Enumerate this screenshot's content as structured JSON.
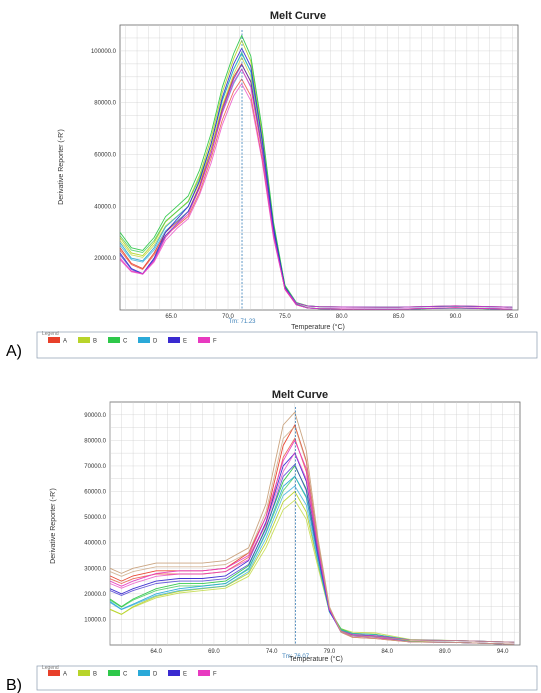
{
  "panels": [
    {
      "panel_label": "A)",
      "legend_title": "Legend",
      "tm_label": "Tm: 71.23",
      "chart_data": {
        "type": "line",
        "title": "Melt Curve",
        "xlabel": "Temperature (°C)",
        "ylabel": "Derivative Reporter (-R')",
        "xlim": [
          60.5,
          95.5
        ],
        "ylim": [
          0,
          110000
        ],
        "x_ticks": [
          65.0,
          70.0,
          75.0,
          80.0,
          85.0,
          90.0,
          95.0
        ],
        "x_tick_labels": [
          "65.0",
          "70.0",
          "75.0",
          "80.0",
          "85.0",
          "90.0",
          "95.0"
        ],
        "y_ticks": [
          20000,
          40000,
          60000,
          80000,
          100000
        ],
        "y_tick_labels": [
          "20000.0",
          "40000.0",
          "60000.0",
          "80000.0",
          "100000.0"
        ],
        "tm_x": 71.23,
        "grid": true,
        "legend_position": "bottom",
        "series": [
          {
            "name": "A",
            "color": "#e8402a",
            "x": [
              60.5,
              61.5,
              62.5,
              63.5,
              64.5,
              65.5,
              66.5,
              67.5,
              68.5,
              69.5,
              70.5,
              71.2,
              72.0,
              73.0,
              74.0,
              75.0,
              76.0,
              77.0,
              78.0,
              80.0,
              85.0,
              90.0,
              95.0
            ],
            "y": [
              24000,
              18000,
              16000,
              22000,
              30000,
              34000,
              38000,
              48000,
              62000,
              78000,
              90000,
              95000,
              88000,
              62000,
              30000,
              8000,
              2000,
              800,
              500,
              400,
              300,
              900,
              300
            ]
          },
          {
            "name": "B",
            "color": "#b8d42a",
            "x": [
              60.5,
              61.5,
              62.5,
              63.5,
              64.5,
              65.5,
              66.5,
              67.5,
              68.5,
              69.5,
              70.5,
              71.2,
              72.0,
              73.0,
              74.0,
              75.0,
              76.0,
              77.0,
              78.0,
              80.0,
              85.0,
              90.0,
              95.0
            ],
            "y": [
              28000,
              22000,
              21000,
              26000,
              34000,
              38000,
              42000,
              52000,
              66000,
              84000,
              97000,
              104000,
              96000,
              68000,
              33000,
              9000,
              2200,
              900,
              500,
              400,
              300,
              800,
              300
            ]
          },
          {
            "name": "C",
            "color": "#2ec84a",
            "x": [
              60.5,
              61.5,
              62.5,
              63.5,
              64.5,
              65.5,
              66.5,
              67.5,
              68.5,
              69.5,
              70.5,
              71.2,
              72.0,
              73.0,
              74.0,
              75.0,
              76.0,
              77.0,
              78.0,
              80.0,
              85.0,
              90.0,
              95.0
            ],
            "y": [
              30000,
              24000,
              23000,
              28000,
              36000,
              40000,
              44000,
              54000,
              68000,
              86000,
              99000,
              106000,
              98000,
              70000,
              34000,
              9500,
              2300,
              900,
              500,
              400,
              300,
              700,
              300
            ]
          },
          {
            "name": "D",
            "color": "#2aa9d8",
            "x": [
              60.5,
              61.5,
              62.5,
              63.5,
              64.5,
              65.5,
              66.5,
              67.5,
              68.5,
              69.5,
              70.5,
              71.2,
              72.0,
              73.0,
              74.0,
              75.0,
              76.0,
              77.0,
              78.0,
              80.0,
              85.0,
              90.0,
              95.0
            ],
            "y": [
              26000,
              20000,
              19000,
              24000,
              32000,
              36000,
              40000,
              50000,
              64000,
              81000,
              93000,
              99000,
              92000,
              65000,
              31000,
              8500,
              2100,
              800,
              500,
              400,
              300,
              800,
              300
            ]
          },
          {
            "name": "E",
            "color": "#3a2ad0",
            "x": [
              60.5,
              61.5,
              62.5,
              63.5,
              64.5,
              65.5,
              66.5,
              67.5,
              68.5,
              69.5,
              70.5,
              71.2,
              72.0,
              73.0,
              74.0,
              75.0,
              76.0,
              77.0,
              78.0,
              80.0,
              85.0,
              90.0,
              95.0
            ],
            "y": [
              22000,
              16000,
              14000,
              20000,
              30000,
              35000,
              40000,
              50000,
              64000,
              82000,
              95000,
              101000,
              94000,
              66000,
              32000,
              8700,
              2100,
              800,
              500,
              400,
              300,
              800,
              300
            ]
          },
          {
            "name": "F",
            "color": "#e83ac0",
            "x": [
              60.5,
              61.5,
              62.5,
              63.5,
              64.5,
              65.5,
              66.5,
              67.5,
              68.5,
              69.5,
              70.5,
              71.2,
              72.0,
              73.0,
              74.0,
              75.0,
              76.0,
              77.0,
              78.0,
              80.0,
              85.0,
              90.0,
              95.0
            ],
            "y": [
              20000,
              15000,
              14000,
              19000,
              28000,
              33000,
              37000,
              47000,
              60000,
              76000,
              88000,
              93000,
              86000,
              61000,
              29000,
              8000,
              2000,
              800,
              500,
              400,
              300,
              900,
              300
            ]
          }
        ]
      }
    },
    {
      "panel_label": "B)",
      "legend_title": "Legend",
      "tm_label": "Tm: 76.07",
      "chart_data": {
        "type": "line",
        "title": "Melt Curve",
        "xlabel": "Temperature (°C)",
        "ylabel": "Derivative Reporter (-R')",
        "xlim": [
          60.0,
          95.5
        ],
        "ylim": [
          0,
          95000
        ],
        "x_ticks": [
          64.0,
          69.0,
          74.0,
          79.0,
          84.0,
          89.0,
          94.0
        ],
        "x_tick_labels": [
          "64.0",
          "69.0",
          "74.0",
          "79.0",
          "84.0",
          "89.0",
          "94.0"
        ],
        "y_ticks": [
          10000,
          20000,
          30000,
          40000,
          50000,
          60000,
          70000,
          80000,
          90000
        ],
        "y_tick_labels": [
          "10000.0",
          "20000.0",
          "30000.0",
          "40000.0",
          "50000.0",
          "60000.0",
          "70000.0",
          "80000.0",
          "90000.0"
        ],
        "tm_x": 76.07,
        "grid": true,
        "legend_position": "bottom",
        "series": [
          {
            "name": "A",
            "color": "#e8402a",
            "x": [
              60.0,
              61.0,
              62.0,
              64.0,
              66.0,
              68.0,
              70.0,
              72.0,
              73.5,
              75.0,
              76.0,
              77.0,
              78.0,
              79.0,
              80.0,
              81.0,
              83.0,
              86.0,
              90.0,
              95.0
            ],
            "y": [
              27000,
              25000,
              27000,
              29000,
              29000,
              29000,
              30000,
              36000,
              50000,
              78000,
              86000,
              72000,
              40000,
              14000,
              5000,
              3000,
              2500,
              1200,
              1000,
              300
            ]
          },
          {
            "name": "B",
            "color": "#b8d42a",
            "x": [
              60.0,
              61.0,
              62.0,
              64.0,
              66.0,
              68.0,
              70.0,
              72.0,
              73.5,
              75.0,
              76.0,
              77.0,
              78.0,
              79.0,
              80.0,
              81.0,
              83.0,
              86.0,
              90.0,
              95.0
            ],
            "y": [
              14000,
              12000,
              15000,
              19000,
              21000,
              22000,
              23000,
              28000,
              40000,
              56000,
              60000,
              52000,
              32000,
              13000,
              6000,
              4500,
              4200,
              1500,
              1000,
              300
            ]
          },
          {
            "name": "C",
            "color": "#2ec84a",
            "x": [
              60.0,
              61.0,
              62.0,
              64.0,
              66.0,
              68.0,
              70.0,
              72.0,
              73.5,
              75.0,
              76.0,
              77.0,
              78.0,
              79.0,
              80.0,
              81.0,
              83.0,
              86.0,
              90.0,
              95.0
            ],
            "y": [
              18000,
              15000,
              18000,
              22000,
              24000,
              24000,
              25000,
              31000,
              46000,
              64000,
              70000,
              61000,
              36000,
              14000,
              6000,
              4000,
              3500,
              1300,
              1000,
              300
            ]
          },
          {
            "name": "D",
            "color": "#2aa9d8",
            "x": [
              60.0,
              61.0,
              62.0,
              64.0,
              66.0,
              68.0,
              70.0,
              72.0,
              73.5,
              75.0,
              76.0,
              77.0,
              78.0,
              79.0,
              80.0,
              81.0,
              83.0,
              86.0,
              90.0,
              95.0
            ],
            "y": [
              17000,
              14000,
              16000,
              20000,
              22000,
              23000,
              24000,
              30000,
              44000,
              62000,
              66000,
              58000,
              34000,
              13000,
              5500,
              4000,
              3500,
              1300,
              1000,
              300
            ]
          },
          {
            "name": "E",
            "color": "#3a2ad0",
            "x": [
              60.0,
              61.0,
              62.0,
              64.0,
              66.0,
              68.0,
              70.0,
              72.0,
              73.5,
              75.0,
              76.0,
              77.0,
              78.0,
              79.0,
              80.0,
              81.0,
              83.0,
              86.0,
              90.0,
              95.0
            ],
            "y": [
              22000,
              20000,
              22000,
              25000,
              26000,
              26000,
              27000,
              33000,
              48000,
              70000,
              75000,
              64000,
              37000,
              13500,
              5000,
              3500,
              3000,
              1200,
              1000,
              300
            ]
          },
          {
            "name": "F",
            "color": "#e83ac0",
            "x": [
              60.0,
              61.0,
              62.0,
              64.0,
              66.0,
              68.0,
              70.0,
              72.0,
              73.5,
              75.0,
              76.0,
              77.0,
              78.0,
              79.0,
              80.0,
              81.0,
              83.0,
              86.0,
              90.0,
              95.0
            ],
            "y": [
              25000,
              23000,
              25000,
              28000,
              29000,
              29000,
              30000,
              35000,
              50000,
              72000,
              80000,
              69000,
              39000,
              14000,
              5000,
              3500,
              3000,
              1200,
              1000,
              300
            ]
          },
          {
            "name": "A",
            "color": "#c8a07a",
            "x": [
              60.0,
              61.0,
              62.0,
              64.0,
              66.0,
              68.0,
              70.0,
              72.0,
              73.5,
              75.0,
              76.0,
              77.0,
              78.0,
              79.0,
              80.0,
              81.0,
              83.0,
              86.0,
              90.0,
              95.0
            ],
            "y": [
              30000,
              28000,
              30000,
              32000,
              32000,
              32000,
              33000,
              38000,
              55000,
              86000,
              91000,
              76000,
              42000,
              15000,
              5000,
              3000,
              2500,
              1200,
              1000,
              300
            ]
          }
        ]
      }
    }
  ]
}
